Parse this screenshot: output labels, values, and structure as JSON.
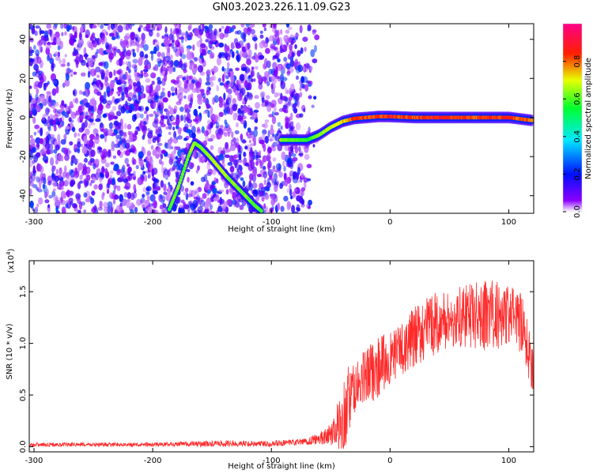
{
  "title": "GN03.2023.226.11.09.G23",
  "chart_data": [
    {
      "type": "heatmap",
      "xlabel": "Height of straight line (km)",
      "ylabel": "Frequency (Hz)",
      "xlim": [
        -304,
        121
      ],
      "ylim": [
        -49,
        48
      ],
      "x_ticks": [
        -300,
        -200,
        -100,
        0,
        100
      ],
      "y_ticks": [
        -40,
        -20,
        0,
        20,
        40
      ],
      "colorbar": {
        "label": "Normalized spectral amplitude",
        "range": [
          0.0,
          1.0
        ],
        "ticks": [
          0.0,
          0.2,
          0.4,
          0.6,
          0.8
        ],
        "tick_labels": [
          "0.0",
          "0.2",
          "0.4",
          "0.6",
          "0.8"
        ],
        "colormap": [
          "#ffffff",
          "#7f00ff",
          "#0000ff",
          "#00ffff",
          "#00ff00",
          "#ffff00",
          "#ff0000",
          "#ff0080"
        ]
      },
      "ridges": [
        {
          "name": "",
          "x": [
            -92,
            -80,
            -70,
            -60,
            -50,
            -40,
            -30,
            -20,
            -10,
            0,
            20,
            40,
            60,
            80,
            100,
            120
          ],
          "y": [
            -11.5,
            -11.5,
            -11.5,
            -9,
            -5,
            -2,
            -0.5,
            0,
            0.5,
            0.5,
            0,
            0,
            0,
            0,
            0,
            -1.5
          ],
          "amplitude": [
            0.5,
            0.4,
            0.35,
            0.45,
            0.55,
            0.7,
            0.85,
            0.85,
            0.9,
            0.95,
            0.85,
            0.95,
            0.9,
            0.85,
            0.9,
            0.8
          ]
        },
        {
          "name": "",
          "x": [
            -186,
            -178,
            -170,
            -165,
            -160,
            -152,
            -145,
            -138,
            -130,
            -122,
            -114,
            -108
          ],
          "y": [
            -47,
            -35,
            -20,
            -13,
            -15,
            -20,
            -25,
            -30,
            -35,
            -40,
            -45,
            -48
          ],
          "amplitude": [
            0.4,
            0.45,
            0.45,
            0.5,
            0.45,
            0.5,
            0.55,
            0.5,
            0.45,
            0.45,
            0.4,
            0.4
          ]
        }
      ],
      "noise_region_x": [
        -304,
        -60
      ]
    },
    {
      "type": "line",
      "xlabel": "Height of straight line (km)",
      "ylabel": "SNR (10 * v/v)",
      "y_scale_label": "(x10",
      "y_scale_exponent": "4",
      "y_scale_suffix": ")",
      "xlim": [
        -304,
        121
      ],
      "ylim": [
        -0.05,
        1.8
      ],
      "x_ticks": [
        -300,
        -200,
        -100,
        0,
        100
      ],
      "y_ticks": [
        0.0,
        0.5,
        1.0,
        1.5
      ],
      "y_tick_labels": [
        "0.0",
        "0.5",
        "1.0",
        "1.5"
      ],
      "color": "#ff2a2a",
      "x": [
        -304,
        -250,
        -200,
        -150,
        -100,
        -80,
        -70,
        -60,
        -50,
        -40,
        -35,
        -30,
        -25,
        -20,
        -10,
        0,
        10,
        20,
        30,
        40,
        50,
        60,
        70,
        80,
        90,
        100,
        110,
        115,
        121
      ],
      "y": [
        0.02,
        0.02,
        0.02,
        0.03,
        0.03,
        0.04,
        0.05,
        0.08,
        0.12,
        0.25,
        0.45,
        0.55,
        0.62,
        0.68,
        0.78,
        0.85,
        0.95,
        1.05,
        1.15,
        1.2,
        1.22,
        1.25,
        1.27,
        1.28,
        1.28,
        1.27,
        1.2,
        1.0,
        0.72
      ],
      "spread": [
        0.02,
        0.02,
        0.02,
        0.03,
        0.03,
        0.03,
        0.04,
        0.06,
        0.1,
        0.35,
        0.35,
        0.25,
        0.25,
        0.3,
        0.3,
        0.25,
        0.25,
        0.3,
        0.3,
        0.3,
        0.3,
        0.3,
        0.32,
        0.35,
        0.35,
        0.3,
        0.3,
        0.3,
        0.2
      ]
    }
  ]
}
